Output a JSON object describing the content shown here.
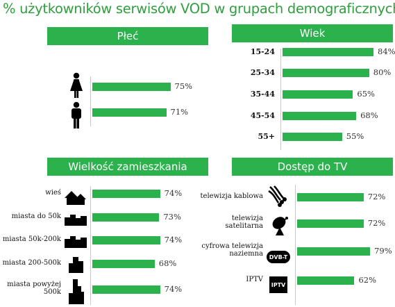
{
  "title": "% użytkowników serwisów VOD w grupach demograficznych",
  "colors": {
    "accent": "#2bb24c",
    "title": "#2f9e3e"
  },
  "chart_data": [
    {
      "type": "bar",
      "title": "Płeć",
      "categories": [
        "kobiety",
        "mężczyźni"
      ],
      "category_icons": [
        "woman-icon",
        "man-icon"
      ],
      "values": [
        75,
        71
      ],
      "value_labels": [
        "75%",
        "71%"
      ],
      "ylim": [
        0,
        100
      ]
    },
    {
      "type": "bar",
      "title": "Wiek",
      "categories": [
        "15-24",
        "25-34",
        "35-44",
        "45-54",
        "55+"
      ],
      "values": [
        84,
        80,
        65,
        68,
        55
      ],
      "value_labels": [
        "84%",
        "80%",
        "65%",
        "68%",
        "55%"
      ],
      "ylim": [
        0,
        100
      ]
    },
    {
      "type": "bar",
      "title": "Wielkość zamieszkania",
      "categories": [
        "wieś",
        "miasta do 50k",
        "miasta 50k-200k",
        "miasta 200-500k",
        "miasta powyżej 500k"
      ],
      "category_icons": [
        "village-icon",
        "small-town-icon",
        "mid-town-icon",
        "city-icon",
        "big-city-icon"
      ],
      "values": [
        74,
        73,
        74,
        68,
        74
      ],
      "value_labels": [
        "74%",
        "73%",
        "74%",
        "68%",
        "74%"
      ],
      "ylim": [
        0,
        100
      ]
    },
    {
      "type": "bar",
      "title": "Dostęp do TV",
      "categories": [
        "telewizja kablowa",
        "telewizja satelitarna",
        "cyfrowa telewizja naziemna",
        "IPTV"
      ],
      "category_icons": [
        "cable-icon",
        "satellite-dish-icon",
        "dvbt-icon",
        "iptv-icon"
      ],
      "icon_texts": [
        "",
        "",
        "DVB-T",
        "IPTV"
      ],
      "values": [
        72,
        72,
        79,
        62
      ],
      "value_labels": [
        "72%",
        "72%",
        "79%",
        "62%"
      ],
      "ylim": [
        0,
        100
      ]
    }
  ]
}
